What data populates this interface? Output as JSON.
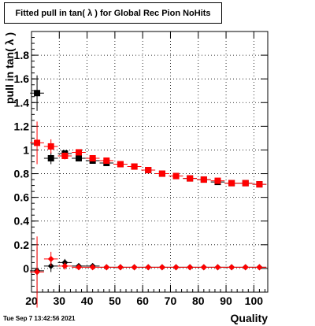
{
  "title": "Fitted pull in tan( λ ) for Global Rec Pion NoHits",
  "timestamp": "Tue Sep  7 13:42:56 2021",
  "chart_data": {
    "type": "scatter",
    "title": "Fitted pull in tan( λ ) for Global Rec Pion NoHits",
    "xlabel": "Quality",
    "ylabel": "pull in tan( λ )",
    "xlim": [
      20,
      105
    ],
    "ylim": [
      -0.2,
      2.0
    ],
    "x_ticks": [
      20,
      30,
      40,
      50,
      60,
      70,
      80,
      90,
      100
    ],
    "y_ticks": [
      0,
      0.2,
      0.4,
      0.6,
      0.8,
      1,
      1.2,
      1.4,
      1.6,
      1.8
    ],
    "grid": true,
    "series": [
      {
        "marker": "square",
        "color": "#000000",
        "x": [
          22,
          27,
          32,
          37,
          42,
          47,
          52,
          57,
          62,
          67,
          72,
          77,
          82,
          87,
          92,
          97,
          102
        ],
        "y": [
          1.48,
          0.93,
          0.97,
          0.93,
          0.91,
          0.89,
          0.88,
          0.86,
          0.83,
          0.8,
          0.78,
          0.76,
          0.75,
          0.73,
          0.72,
          0.72,
          0.71
        ],
        "yerr": [
          0.15,
          0.05,
          0.03,
          0.02,
          0.01,
          0.01,
          0.01,
          0.01,
          0.01,
          0.01,
          0.01,
          0.01,
          0.01,
          0.01,
          0.01,
          0.01,
          0.01
        ]
      },
      {
        "marker": "square",
        "color": "#ff0000",
        "x": [
          22,
          27,
          32,
          37,
          42,
          47,
          52,
          57,
          62,
          67,
          72,
          77,
          82,
          87,
          92,
          97,
          102
        ],
        "y": [
          1.06,
          1.03,
          0.95,
          0.98,
          0.93,
          0.91,
          0.88,
          0.86,
          0.83,
          0.8,
          0.78,
          0.76,
          0.75,
          0.74,
          0.72,
          0.72,
          0.71
        ],
        "yerr": [
          0.18,
          0.06,
          0.03,
          0.02,
          0.02,
          0.01,
          0.01,
          0.01,
          0.01,
          0.01,
          0.01,
          0.01,
          0.01,
          0.01,
          0.01,
          0.01,
          0.01
        ]
      },
      {
        "marker": "diamond",
        "color": "#000000",
        "x": [
          22,
          27,
          32,
          37,
          42,
          47,
          52,
          57,
          62,
          67,
          72,
          77,
          82,
          87,
          92,
          97,
          102
        ],
        "y": [
          -0.02,
          0.02,
          0.05,
          0.02,
          0.02,
          0.01,
          0.01,
          0.01,
          0.01,
          0.01,
          0.01,
          0.01,
          0.01,
          0.01,
          0.01,
          0.01,
          0.01
        ],
        "yerr": [
          0.2,
          0.05,
          0.03,
          0.02,
          0.01,
          0.01,
          0.01,
          0.01,
          0.01,
          0.01,
          0.01,
          0.01,
          0.01,
          0.01,
          0.01,
          0.01,
          0.01
        ]
      },
      {
        "marker": "diamond",
        "color": "#ff0000",
        "x": [
          22,
          27,
          32,
          37,
          42,
          47,
          52,
          57,
          62,
          67,
          72,
          77,
          82,
          87,
          92,
          97,
          102
        ],
        "y": [
          -0.03,
          0.08,
          0.02,
          0.01,
          0.01,
          0.01,
          0.01,
          0.01,
          0.01,
          0.01,
          0.01,
          0.01,
          0.01,
          0.01,
          0.01,
          0.01,
          0.01
        ],
        "yerr": [
          0.3,
          0.06,
          0.03,
          0.02,
          0.01,
          0.01,
          0.01,
          0.01,
          0.01,
          0.01,
          0.01,
          0.01,
          0.01,
          0.01,
          0.01,
          0.01,
          0.01
        ]
      }
    ]
  }
}
